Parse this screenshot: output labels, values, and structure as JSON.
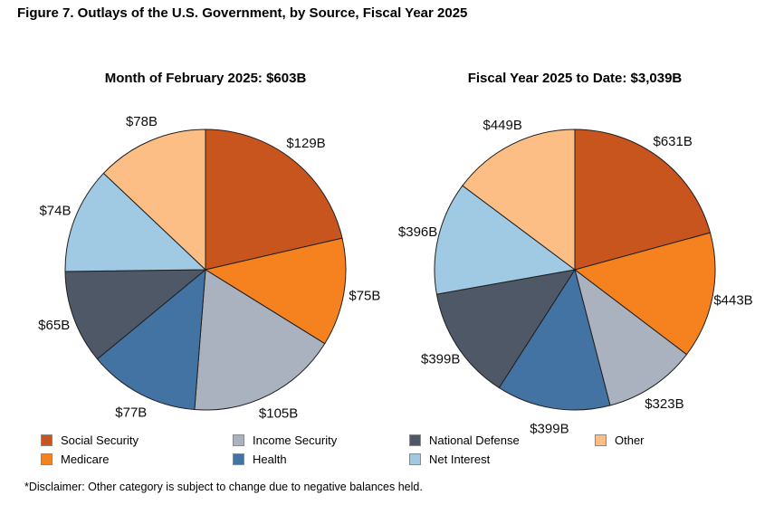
{
  "figure": {
    "title": "Figure 7. Outlays of the U.S. Government, by Source, Fiscal Year 2025",
    "disclaimer": "*Disclaimer: Other category is subject to change due to negative balances held."
  },
  "legend": {
    "position": "bottom",
    "items": [
      {
        "label": "Social Security",
        "color": "#C9551E"
      },
      {
        "label": "Medicare",
        "color": "#F6811F"
      },
      {
        "label": "Income Security",
        "color": "#AAB2C0"
      },
      {
        "label": "Health",
        "color": "#4273A2"
      },
      {
        "label": "National Defense",
        "color": "#4F5866"
      },
      {
        "label": "Net Interest",
        "color": "#A0CAE4"
      },
      {
        "label": "Other",
        "color": "#FCBE84"
      }
    ]
  },
  "chart_data": [
    {
      "type": "pie",
      "title": "Month of February 2025: $603B",
      "total": 603,
      "value_prefix": "$",
      "value_suffix": "B",
      "start": "top",
      "direction": "clockwise",
      "categories": [
        "Social Security",
        "Medicare",
        "Income Security",
        "Health",
        "National Defense",
        "Net Interest",
        "Other"
      ],
      "values": [
        129,
        75,
        105,
        77,
        65,
        74,
        78
      ],
      "labels": [
        "$129B",
        "$75B",
        "$105B",
        "$77B",
        "$65B",
        "$74B",
        "$78B"
      ]
    },
    {
      "type": "pie",
      "title": "Fiscal Year 2025 to Date: $3,039B",
      "total": 3039,
      "value_prefix": "$",
      "value_suffix": "B",
      "start": "top",
      "direction": "clockwise",
      "categories": [
        "Social Security",
        "Medicare",
        "Income Security",
        "Health",
        "National Defense",
        "Net Interest",
        "Other"
      ],
      "values": [
        631,
        443,
        323,
        399,
        399,
        396,
        449
      ],
      "labels": [
        "$631B",
        "$443B",
        "$323B",
        "$399B",
        "$399B",
        "$396B",
        "$449B"
      ]
    }
  ]
}
